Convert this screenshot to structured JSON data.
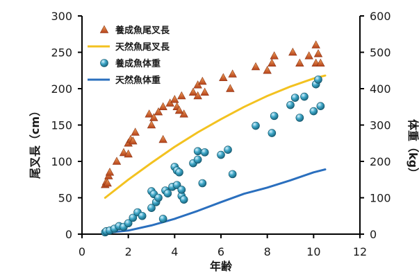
{
  "chart_data": {
    "type": "scatter",
    "xlabel": "年齢",
    "ylabel_left": "尾叉長（cm）",
    "ylabel_right": "体重（kg）",
    "xlim": [
      0,
      12
    ],
    "ylim_left": [
      0,
      300
    ],
    "ylim_right": [
      0,
      600
    ],
    "x_ticks": [
      0,
      2,
      4,
      6,
      8,
      10,
      12
    ],
    "y_left_ticks": [
      0,
      50,
      100,
      150,
      200,
      250,
      300
    ],
    "y_right_ticks": [
      0,
      100,
      200,
      300,
      400,
      500,
      600
    ],
    "legend_position": "top-left",
    "grid": false,
    "series": [
      {
        "name": "養成魚尾叉長",
        "kind": "scatter",
        "axis": "left",
        "marker": "triangle",
        "color": "#c0541a",
        "points": [
          [
            1.0,
            68
          ],
          [
            1.05,
            72
          ],
          [
            1.15,
            80
          ],
          [
            1.2,
            85
          ],
          [
            1.1,
            70
          ],
          [
            1.5,
            100
          ],
          [
            1.8,
            112
          ],
          [
            2.0,
            125
          ],
          [
            2.1,
            130
          ],
          [
            2.3,
            140
          ],
          [
            2.0,
            110
          ],
          [
            2.2,
            128
          ],
          [
            2.9,
            165
          ],
          [
            3.0,
            150
          ],
          [
            3.1,
            160
          ],
          [
            3.3,
            168
          ],
          [
            3.5,
            130
          ],
          [
            3.5,
            175
          ],
          [
            3.8,
            180
          ],
          [
            4.0,
            185
          ],
          [
            4.1,
            175
          ],
          [
            4.3,
            190
          ],
          [
            4.4,
            165
          ],
          [
            4.2,
            170
          ],
          [
            4.8,
            195
          ],
          [
            5.0,
            205
          ],
          [
            5.0,
            190
          ],
          [
            5.2,
            210
          ],
          [
            5.3,
            195
          ],
          [
            6.1,
            215
          ],
          [
            6.4,
            200
          ],
          [
            6.5,
            220
          ],
          [
            7.5,
            230
          ],
          [
            8.0,
            225
          ],
          [
            8.3,
            245
          ],
          [
            8.2,
            235
          ],
          [
            9.1,
            250
          ],
          [
            9.4,
            235
          ],
          [
            9.8,
            245
          ],
          [
            10.1,
            260
          ],
          [
            10.2,
            248
          ],
          [
            10.1,
            235
          ],
          [
            10.3,
            235
          ]
        ]
      },
      {
        "name": "天然魚尾叉長",
        "kind": "line",
        "axis": "left",
        "color": "#f3c220",
        "points": [
          [
            1.0,
            50
          ],
          [
            2.0,
            75
          ],
          [
            3.0,
            98
          ],
          [
            4.0,
            120
          ],
          [
            5.0,
            140
          ],
          [
            6.0,
            158
          ],
          [
            7.0,
            175
          ],
          [
            8.0,
            190
          ],
          [
            9.0,
            203
          ],
          [
            10.0,
            214
          ],
          [
            10.5,
            218
          ]
        ]
      },
      {
        "name": "養成魚体重",
        "kind": "scatter",
        "axis": "right",
        "marker": "circle",
        "color": "#2a93b0",
        "points": [
          [
            1.0,
            5
          ],
          [
            1.05,
            8
          ],
          [
            1.2,
            10
          ],
          [
            1.4,
            15
          ],
          [
            1.6,
            22
          ],
          [
            1.8,
            20
          ],
          [
            2.0,
            30
          ],
          [
            2.2,
            45
          ],
          [
            2.4,
            60
          ],
          [
            2.6,
            50
          ],
          [
            3.0,
            72
          ],
          [
            3.0,
            118
          ],
          [
            3.1,
            110
          ],
          [
            3.2,
            88
          ],
          [
            3.3,
            100
          ],
          [
            3.5,
            42
          ],
          [
            3.6,
            120
          ],
          [
            3.7,
            112
          ],
          [
            3.9,
            130
          ],
          [
            4.0,
            185
          ],
          [
            4.1,
            175
          ],
          [
            4.1,
            135
          ],
          [
            4.2,
            170
          ],
          [
            4.3,
            105
          ],
          [
            4.3,
            122
          ],
          [
            4.4,
            95
          ],
          [
            4.8,
            195
          ],
          [
            5.0,
            205
          ],
          [
            5.0,
            228
          ],
          [
            5.2,
            140
          ],
          [
            5.3,
            225
          ],
          [
            6.0,
            218
          ],
          [
            6.3,
            232
          ],
          [
            6.5,
            165
          ],
          [
            7.5,
            298
          ],
          [
            8.2,
            278
          ],
          [
            8.3,
            325
          ],
          [
            9.0,
            355
          ],
          [
            9.2,
            375
          ],
          [
            9.4,
            320
          ],
          [
            9.6,
            378
          ],
          [
            10.0,
            338
          ],
          [
            10.1,
            412
          ],
          [
            10.2,
            425
          ],
          [
            10.3,
            352
          ]
        ]
      },
      {
        "name": "天然魚体重",
        "kind": "line",
        "axis": "right",
        "color": "#2a6fbe",
        "points": [
          [
            1.0,
            3
          ],
          [
            2.0,
            10
          ],
          [
            3.0,
            24
          ],
          [
            4.0,
            42
          ],
          [
            5.0,
            64
          ],
          [
            6.0,
            88
          ],
          [
            7.0,
            111
          ],
          [
            8.0,
            128
          ],
          [
            9.0,
            148
          ],
          [
            10.0,
            170
          ],
          [
            10.5,
            178
          ]
        ]
      }
    ]
  }
}
